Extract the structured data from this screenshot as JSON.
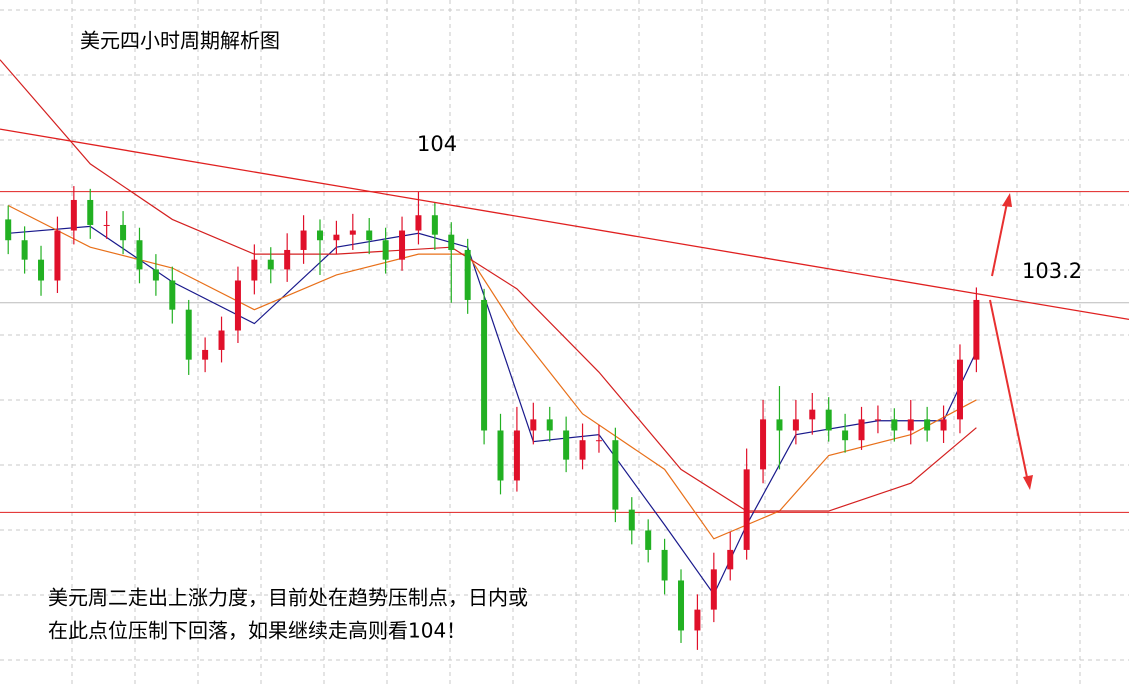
{
  "chart_data": {
    "type": "candlestick",
    "title": "美元四小时周期解析图",
    "note_lines": [
      "美元周二走出上涨力度，目前处在趋势压制点，日内或",
      "在此点位压制下回落，如果继续走高则看104！"
    ],
    "resistance": 104,
    "target": 103.2,
    "support": 101.69,
    "xlim": [
      -0.5,
      68.3
    ],
    "ylim": [
      100.44,
      105.38
    ],
    "up_color": "#e0102a",
    "down_color": "#22b022",
    "open": [
      103.8,
      103.65,
      103.51,
      103.36,
      103.72,
      103.94,
      103.76,
      103.76,
      103.65,
      103.44,
      103.36,
      103.15,
      102.79,
      102.86,
      103.0,
      103.36,
      103.51,
      103.44,
      103.58,
      103.72,
      103.65,
      103.69,
      103.72,
      103.65,
      103.51,
      103.72,
      103.83,
      103.69,
      103.58,
      103.22,
      102.28,
      101.92,
      102.28,
      102.36,
      102.28,
      102.07,
      102.21,
      102.21,
      101.71,
      101.56,
      101.42,
      101.2,
      100.84,
      100.99,
      101.28,
      101.42,
      102.0,
      102.36,
      102.28,
      102.36,
      102.43,
      102.28,
      102.21,
      102.36,
      102.36,
      102.28,
      102.36,
      102.28,
      102.36,
      102.79
    ],
    "high": [
      103.9,
      103.75,
      103.61,
      103.82,
      104.04,
      104.02,
      103.86,
      103.86,
      103.74,
      103.55,
      103.46,
      103.22,
      102.95,
      103.1,
      103.46,
      103.62,
      103.6,
      103.7,
      103.83,
      103.8,
      103.79,
      103.84,
      103.81,
      103.74,
      103.82,
      104.0,
      103.92,
      103.78,
      103.66,
      103.3,
      102.4,
      102.45,
      102.48,
      102.45,
      102.38,
      102.33,
      102.32,
      102.3,
      101.8,
      101.64,
      101.5,
      101.28,
      101.1,
      101.4,
      101.55,
      102.15,
      102.5,
      102.6,
      102.5,
      102.55,
      102.52,
      102.4,
      102.45,
      102.46,
      102.44,
      102.5,
      102.45,
      102.46,
      102.9,
      103.31
    ],
    "low": [
      103.55,
      103.41,
      103.25,
      103.27,
      103.62,
      103.66,
      103.66,
      103.55,
      103.34,
      103.25,
      103.05,
      102.68,
      102.7,
      102.77,
      102.91,
      103.26,
      103.34,
      103.35,
      103.48,
      103.4,
      103.55,
      103.58,
      103.55,
      103.41,
      103.43,
      103.62,
      103.58,
      103.2,
      103.12,
      102.18,
      101.82,
      101.84,
      102.18,
      102.2,
      101.98,
      102.0,
      102.12,
      101.62,
      101.46,
      101.33,
      101.1,
      100.75,
      100.7,
      100.9,
      101.2,
      101.35,
      101.9,
      102.0,
      102.18,
      102.25,
      102.2,
      102.12,
      102.14,
      102.26,
      102.2,
      102.18,
      102.2,
      102.19,
      102.26,
      102.7
    ],
    "close": [
      103.65,
      103.51,
      103.36,
      103.72,
      103.94,
      103.76,
      103.76,
      103.65,
      103.44,
      103.36,
      103.15,
      102.79,
      102.86,
      103.0,
      103.36,
      103.51,
      103.44,
      103.58,
      103.72,
      103.65,
      103.69,
      103.72,
      103.65,
      103.51,
      103.72,
      103.83,
      103.69,
      103.58,
      103.22,
      102.28,
      101.92,
      102.28,
      102.36,
      102.28,
      102.07,
      102.21,
      102.21,
      101.71,
      101.56,
      101.42,
      101.2,
      100.84,
      100.99,
      101.28,
      101.42,
      102.0,
      102.36,
      102.28,
      102.36,
      102.43,
      102.28,
      102.21,
      102.36,
      102.36,
      102.28,
      102.36,
      102.28,
      102.36,
      102.79,
      103.22
    ],
    "trendline": {
      "x": [
        -0.5,
        68.3
      ],
      "values": [
        104.45,
        103.08
      ],
      "color": "#e02020"
    },
    "moving_averages": [
      {
        "color": "#1a1a8c",
        "x": [
          0,
          5,
          10,
          15,
          20,
          25,
          28,
          30,
          32,
          36,
          40,
          43,
          45,
          48,
          53,
          57,
          59
        ],
        "values": [
          103.7,
          103.75,
          103.35,
          103.05,
          103.6,
          103.7,
          103.6,
          102.9,
          102.2,
          102.25,
          101.6,
          101.1,
          101.6,
          102.25,
          102.35,
          102.35,
          102.85
        ]
      },
      {
        "color": "#e8701a",
        "x": [
          0,
          5,
          10,
          15,
          20,
          25,
          28,
          31,
          35,
          40,
          43,
          47,
          50,
          55,
          59
        ],
        "values": [
          103.9,
          103.6,
          103.45,
          103.15,
          103.4,
          103.55,
          103.55,
          103.0,
          102.4,
          102.0,
          101.5,
          101.7,
          102.1,
          102.25,
          102.5
        ]
      },
      {
        "color": "#d42020",
        "x": [
          -0.5,
          5,
          10,
          15,
          20,
          27,
          31,
          36,
          41,
          45,
          50,
          55,
          59
        ],
        "values": [
          104.95,
          104.2,
          103.8,
          103.55,
          103.55,
          103.6,
          103.3,
          102.7,
          102.0,
          101.7,
          101.7,
          101.9,
          102.3
        ]
      }
    ]
  }
}
